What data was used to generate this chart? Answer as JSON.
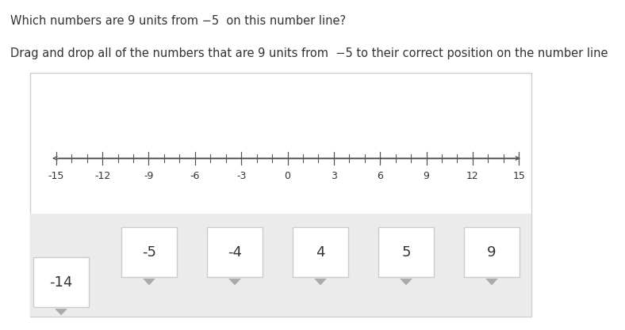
{
  "title_line1": "Which numbers are 9 units from −5  on this number line?",
  "title_line2": "Drag and drop all of the numbers that are 9 units from  −5 to their correct position on the number line",
  "number_line_min": -15,
  "number_line_max": 15,
  "number_line_labels": [
    -15,
    -12,
    -9,
    -6,
    -3,
    0,
    3,
    6,
    9,
    12,
    15
  ],
  "drag_boxes": [
    {
      "label": "-14",
      "col": 0,
      "offset_left": true
    },
    {
      "label": "-5",
      "col": 1,
      "offset_left": false
    },
    {
      "label": "-4",
      "col": 2,
      "offset_left": false
    },
    {
      "label": "4",
      "col": 3,
      "offset_left": false
    },
    {
      "label": "5",
      "col": 4,
      "offset_left": false
    },
    {
      "label": "9",
      "col": 5,
      "offset_left": false
    }
  ],
  "arrow_color": "#aaaaaa",
  "box_edge_color": "#cccccc",
  "bg_panel_color": "#ebebeb",
  "text_color": "#333333",
  "nl_color": "#555555",
  "font_size_title": 10.5,
  "font_size_box": 13,
  "font_size_nl": 9
}
